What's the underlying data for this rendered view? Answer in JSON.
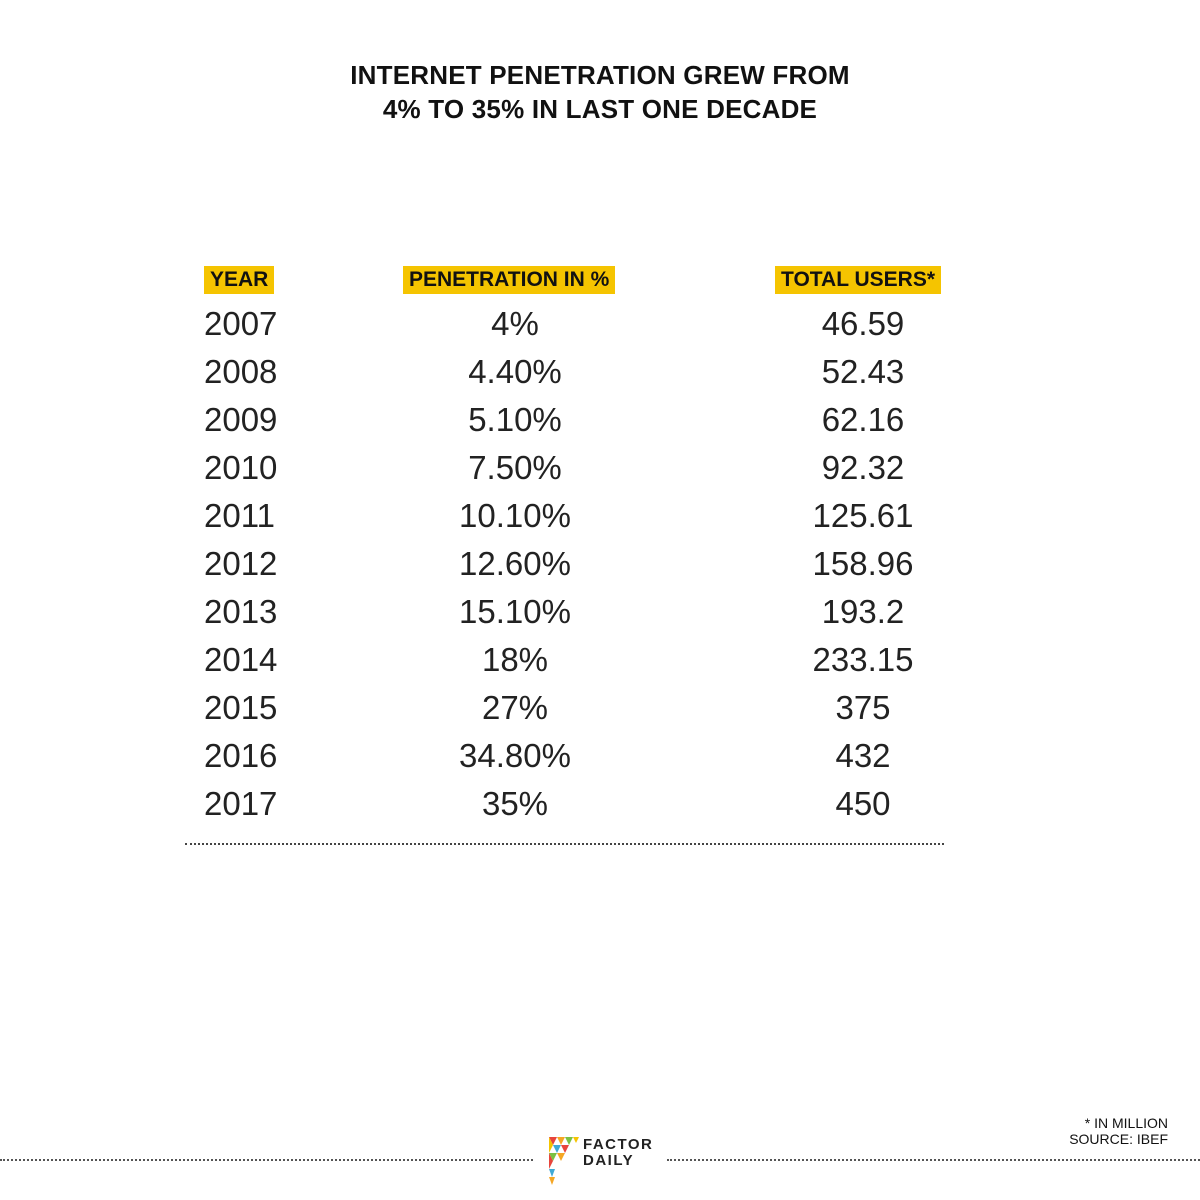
{
  "chart_data": {
    "type": "table",
    "title_lines": [
      "INTERNET PENETRATION GREW FROM",
      "4% TO 35% IN LAST ONE DECADE"
    ],
    "columns": [
      "YEAR",
      "PENETRATION IN %",
      "TOTAL USERS*"
    ],
    "rows": [
      [
        "2007",
        "4%",
        "46.59"
      ],
      [
        "2008",
        "4.40%",
        "52.43"
      ],
      [
        "2009",
        "5.10%",
        "62.16"
      ],
      [
        "2010",
        "7.50%",
        "92.32"
      ],
      [
        "2011",
        "10.10%",
        "125.61"
      ],
      [
        "2012",
        "12.60%",
        "158.96"
      ],
      [
        "2013",
        "15.10%",
        "193.2"
      ],
      [
        "2014",
        "18%",
        "233.15"
      ],
      [
        "2015",
        "27%",
        "375"
      ],
      [
        "2016",
        "34.80%",
        "432"
      ],
      [
        "2017",
        "35%",
        "450"
      ]
    ],
    "header_highlight_color": "#f5c400"
  },
  "footnote": {
    "line1": "* IN MILLION",
    "line2": "SOURCE: IBEF"
  },
  "brand": {
    "line1": "FACTOR",
    "line2": "DAILY",
    "logo_icon": "factor-daily-logo-icon"
  }
}
